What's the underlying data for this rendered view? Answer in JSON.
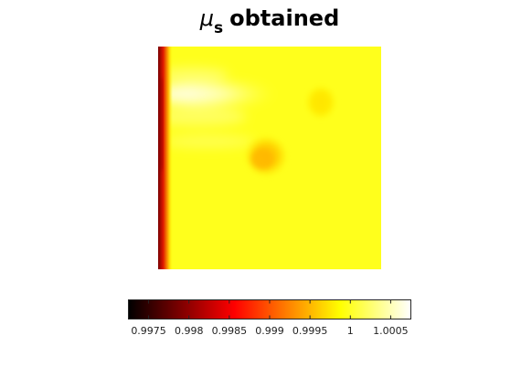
{
  "chart_data": {
    "type": "heatmap",
    "title": {
      "symbol": "μ",
      "subscript": "s",
      "rest": "obtained"
    },
    "colormap": "hot",
    "clim": [
      0.99725,
      1.00075
    ],
    "background_value": 0.99985,
    "regions": [
      {
        "name": "left-edge-band",
        "min_value": 0.9973
      },
      {
        "name": "bright-streak",
        "max_value": 1.0006
      },
      {
        "name": "upper-right-inclusion",
        "value": 0.99978
      },
      {
        "name": "central-inclusion",
        "value": 0.99925
      }
    ],
    "colorbar": {
      "orientation": "horizontal",
      "location": "bottom",
      "ticks": [
        0.9975,
        0.998,
        0.9985,
        0.999,
        0.9995,
        1,
        1.0005
      ],
      "tick_labels": [
        "0.9975",
        "0.998",
        "0.9985",
        "0.999",
        "0.9995",
        "1",
        "1.0005"
      ]
    }
  }
}
